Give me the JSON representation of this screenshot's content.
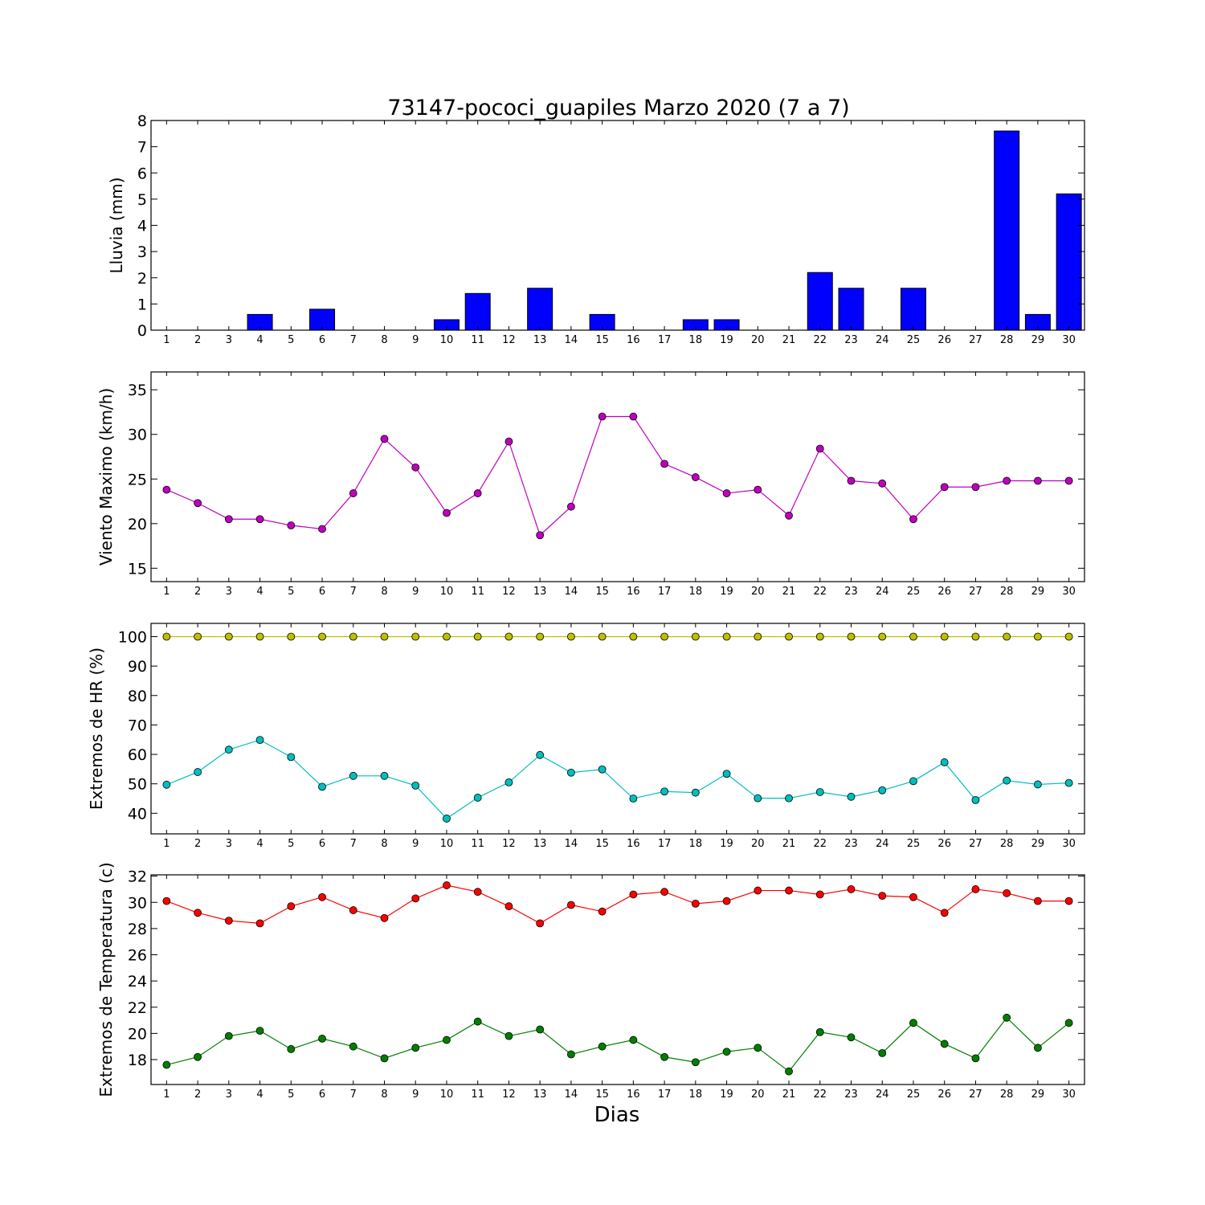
{
  "chart_data": [
    {
      "type": "bar",
      "title": "73147-pococi_guapiles Marzo 2020  (7 a 7)",
      "ylabel": "Lluvia (mm)",
      "xlabel": "",
      "categories": [
        "1",
        "2",
        "3",
        "4",
        "5",
        "6",
        "7",
        "8",
        "9",
        "10",
        "11",
        "12",
        "13",
        "14",
        "15",
        "16",
        "17",
        "18",
        "19",
        "20",
        "21",
        "22",
        "23",
        "24",
        "25",
        "26",
        "27",
        "28",
        "29",
        "30"
      ],
      "values": [
        0,
        0,
        0,
        0.6,
        0,
        0.8,
        0,
        0,
        0,
        0.4,
        1.4,
        0,
        1.6,
        0,
        0.6,
        0,
        0,
        0.4,
        0.4,
        0,
        0,
        2.2,
        1.6,
        0,
        1.6,
        0,
        0,
        7.6,
        0.6,
        5.2
      ],
      "ylim": [
        0,
        8
      ],
      "yticks": [
        0,
        1,
        2,
        3,
        4,
        5,
        6,
        7,
        8
      ],
      "colors": {
        "bar": "#0000ff"
      },
      "grid": false
    },
    {
      "type": "line",
      "title": "",
      "ylabel": "Viento Maximo (km/h)",
      "xlabel": "",
      "categories": [
        "1",
        "2",
        "3",
        "4",
        "5",
        "6",
        "7",
        "8",
        "9",
        "10",
        "11",
        "12",
        "13",
        "14",
        "15",
        "16",
        "17",
        "18",
        "19",
        "20",
        "21",
        "22",
        "23",
        "24",
        "25",
        "26",
        "27",
        "28",
        "29",
        "30"
      ],
      "series": [
        {
          "values": [
            23.8,
            22.3,
            20.5,
            20.5,
            19.8,
            19.4,
            23.4,
            29.5,
            26.3,
            21.2,
            23.4,
            29.2,
            18.7,
            21.9,
            32.0,
            32.0,
            26.7,
            25.2,
            23.4,
            23.8,
            20.9,
            28.4,
            24.8,
            24.5,
            20.5,
            24.1,
            24.1,
            24.8,
            24.8,
            24.8
          ],
          "color": "#bf00bf"
        }
      ],
      "ylim": [
        13.5,
        37
      ],
      "yticks": [
        15,
        20,
        25,
        30,
        35
      ],
      "grid": false
    },
    {
      "type": "line",
      "title": "",
      "ylabel": "Extremos de HR (%)",
      "xlabel": "",
      "categories": [
        "1",
        "2",
        "3",
        "4",
        "5",
        "6",
        "7",
        "8",
        "9",
        "10",
        "11",
        "12",
        "13",
        "14",
        "15",
        "16",
        "17",
        "18",
        "19",
        "20",
        "21",
        "22",
        "23",
        "24",
        "25",
        "26",
        "27",
        "28",
        "29",
        "30"
      ],
      "series": [
        {
          "values": [
            100,
            100,
            100,
            100,
            100,
            100,
            100,
            100,
            100,
            100,
            100,
            100,
            100,
            100,
            100,
            100,
            100,
            100,
            100,
            100,
            100,
            100,
            100,
            100,
            100,
            100,
            100,
            100,
            100,
            100
          ],
          "color": "#bfbf00"
        },
        {
          "values": [
            49.7,
            54.0,
            61.6,
            64.9,
            59.1,
            49.0,
            52.7,
            52.7,
            49.4,
            38.2,
            45.3,
            50.5,
            59.8,
            53.8,
            54.9,
            45.0,
            47.4,
            47.0,
            53.4,
            45.1,
            45.1,
            47.2,
            45.6,
            47.8,
            50.9,
            57.3,
            44.5,
            51.1,
            49.8,
            50.3
          ],
          "color": "#00bfbf"
        }
      ],
      "ylim": [
        33,
        104.5
      ],
      "yticks": [
        40,
        50,
        60,
        70,
        80,
        90,
        100
      ],
      "grid": false
    },
    {
      "type": "line",
      "title": "",
      "ylabel": "Extremos de Temperatura (c)",
      "xlabel": "Dias",
      "categories": [
        "1",
        "2",
        "3",
        "4",
        "5",
        "6",
        "7",
        "8",
        "9",
        "10",
        "11",
        "12",
        "13",
        "14",
        "15",
        "16",
        "17",
        "18",
        "19",
        "20",
        "21",
        "22",
        "23",
        "24",
        "25",
        "26",
        "27",
        "28",
        "29",
        "30"
      ],
      "series": [
        {
          "values": [
            30.1,
            29.2,
            28.6,
            28.4,
            29.7,
            30.4,
            29.4,
            28.8,
            30.3,
            31.3,
            30.8,
            29.7,
            28.4,
            29.8,
            29.3,
            30.6,
            30.8,
            29.9,
            30.1,
            30.9,
            30.9,
            30.6,
            31.0,
            30.5,
            30.4,
            29.2,
            31.0,
            30.7,
            30.1,
            30.1
          ],
          "color": "#ff0000"
        },
        {
          "values": [
            17.6,
            18.2,
            19.8,
            20.2,
            18.8,
            19.6,
            19.0,
            18.1,
            18.9,
            19.5,
            20.9,
            19.8,
            20.3,
            18.4,
            19.0,
            19.5,
            18.2,
            17.8,
            18.6,
            18.9,
            17.1,
            20.1,
            19.7,
            18.5,
            20.8,
            19.2,
            18.1,
            21.2,
            18.9,
            20.8
          ],
          "color": "#007f00"
        }
      ],
      "ylim": [
        16.1,
        32.1
      ],
      "yticks": [
        18,
        20,
        22,
        24,
        26,
        28,
        30,
        32
      ],
      "grid": false
    }
  ]
}
